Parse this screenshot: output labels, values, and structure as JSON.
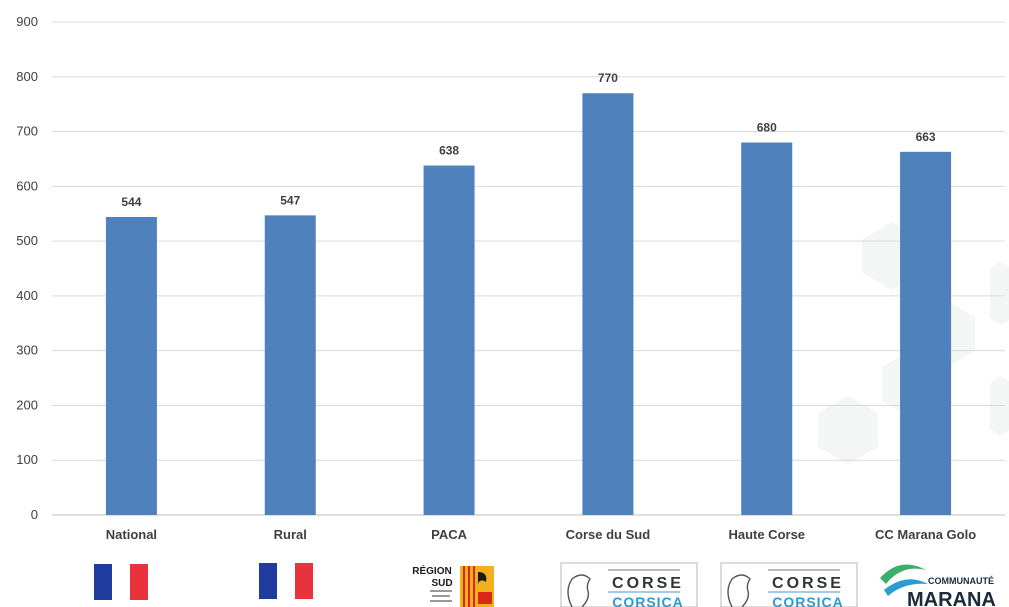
{
  "chart_data": {
    "type": "bar",
    "categories": [
      "National",
      "Rural",
      "PACA",
      "Corse du Sud",
      "Haute Corse",
      "CC Marana Golo"
    ],
    "values": [
      544,
      547,
      638,
      770,
      680,
      663
    ],
    "title": "",
    "xlabel": "",
    "ylabel": "",
    "ylim": [
      0,
      900
    ],
    "yticks": [
      0,
      100,
      200,
      300,
      400,
      500,
      600,
      700,
      800,
      900
    ],
    "grid": true,
    "data_labels": true,
    "bar_color": "#4F81BD"
  },
  "logos": {
    "paca": {
      "line1": "RÉGION",
      "line2": "SUD"
    },
    "corse1": {
      "line1": "CORSE",
      "line2": "CORSICA"
    },
    "corse2": {
      "line1": "CORSE",
      "line2": "CORSICA"
    },
    "marana": {
      "line1": "COMMUNAUTÉ",
      "line2": "MARANA"
    }
  },
  "colors": {
    "flag_blue": "#1F3C9E",
    "flag_red": "#E8323C",
    "paca_yellow": "#F2B01E",
    "paca_red": "#D8281C",
    "corsica_blue": "#2A9BD3",
    "marana_green": "#3DAE6A",
    "marana_dark": "#1A2B3C"
  }
}
